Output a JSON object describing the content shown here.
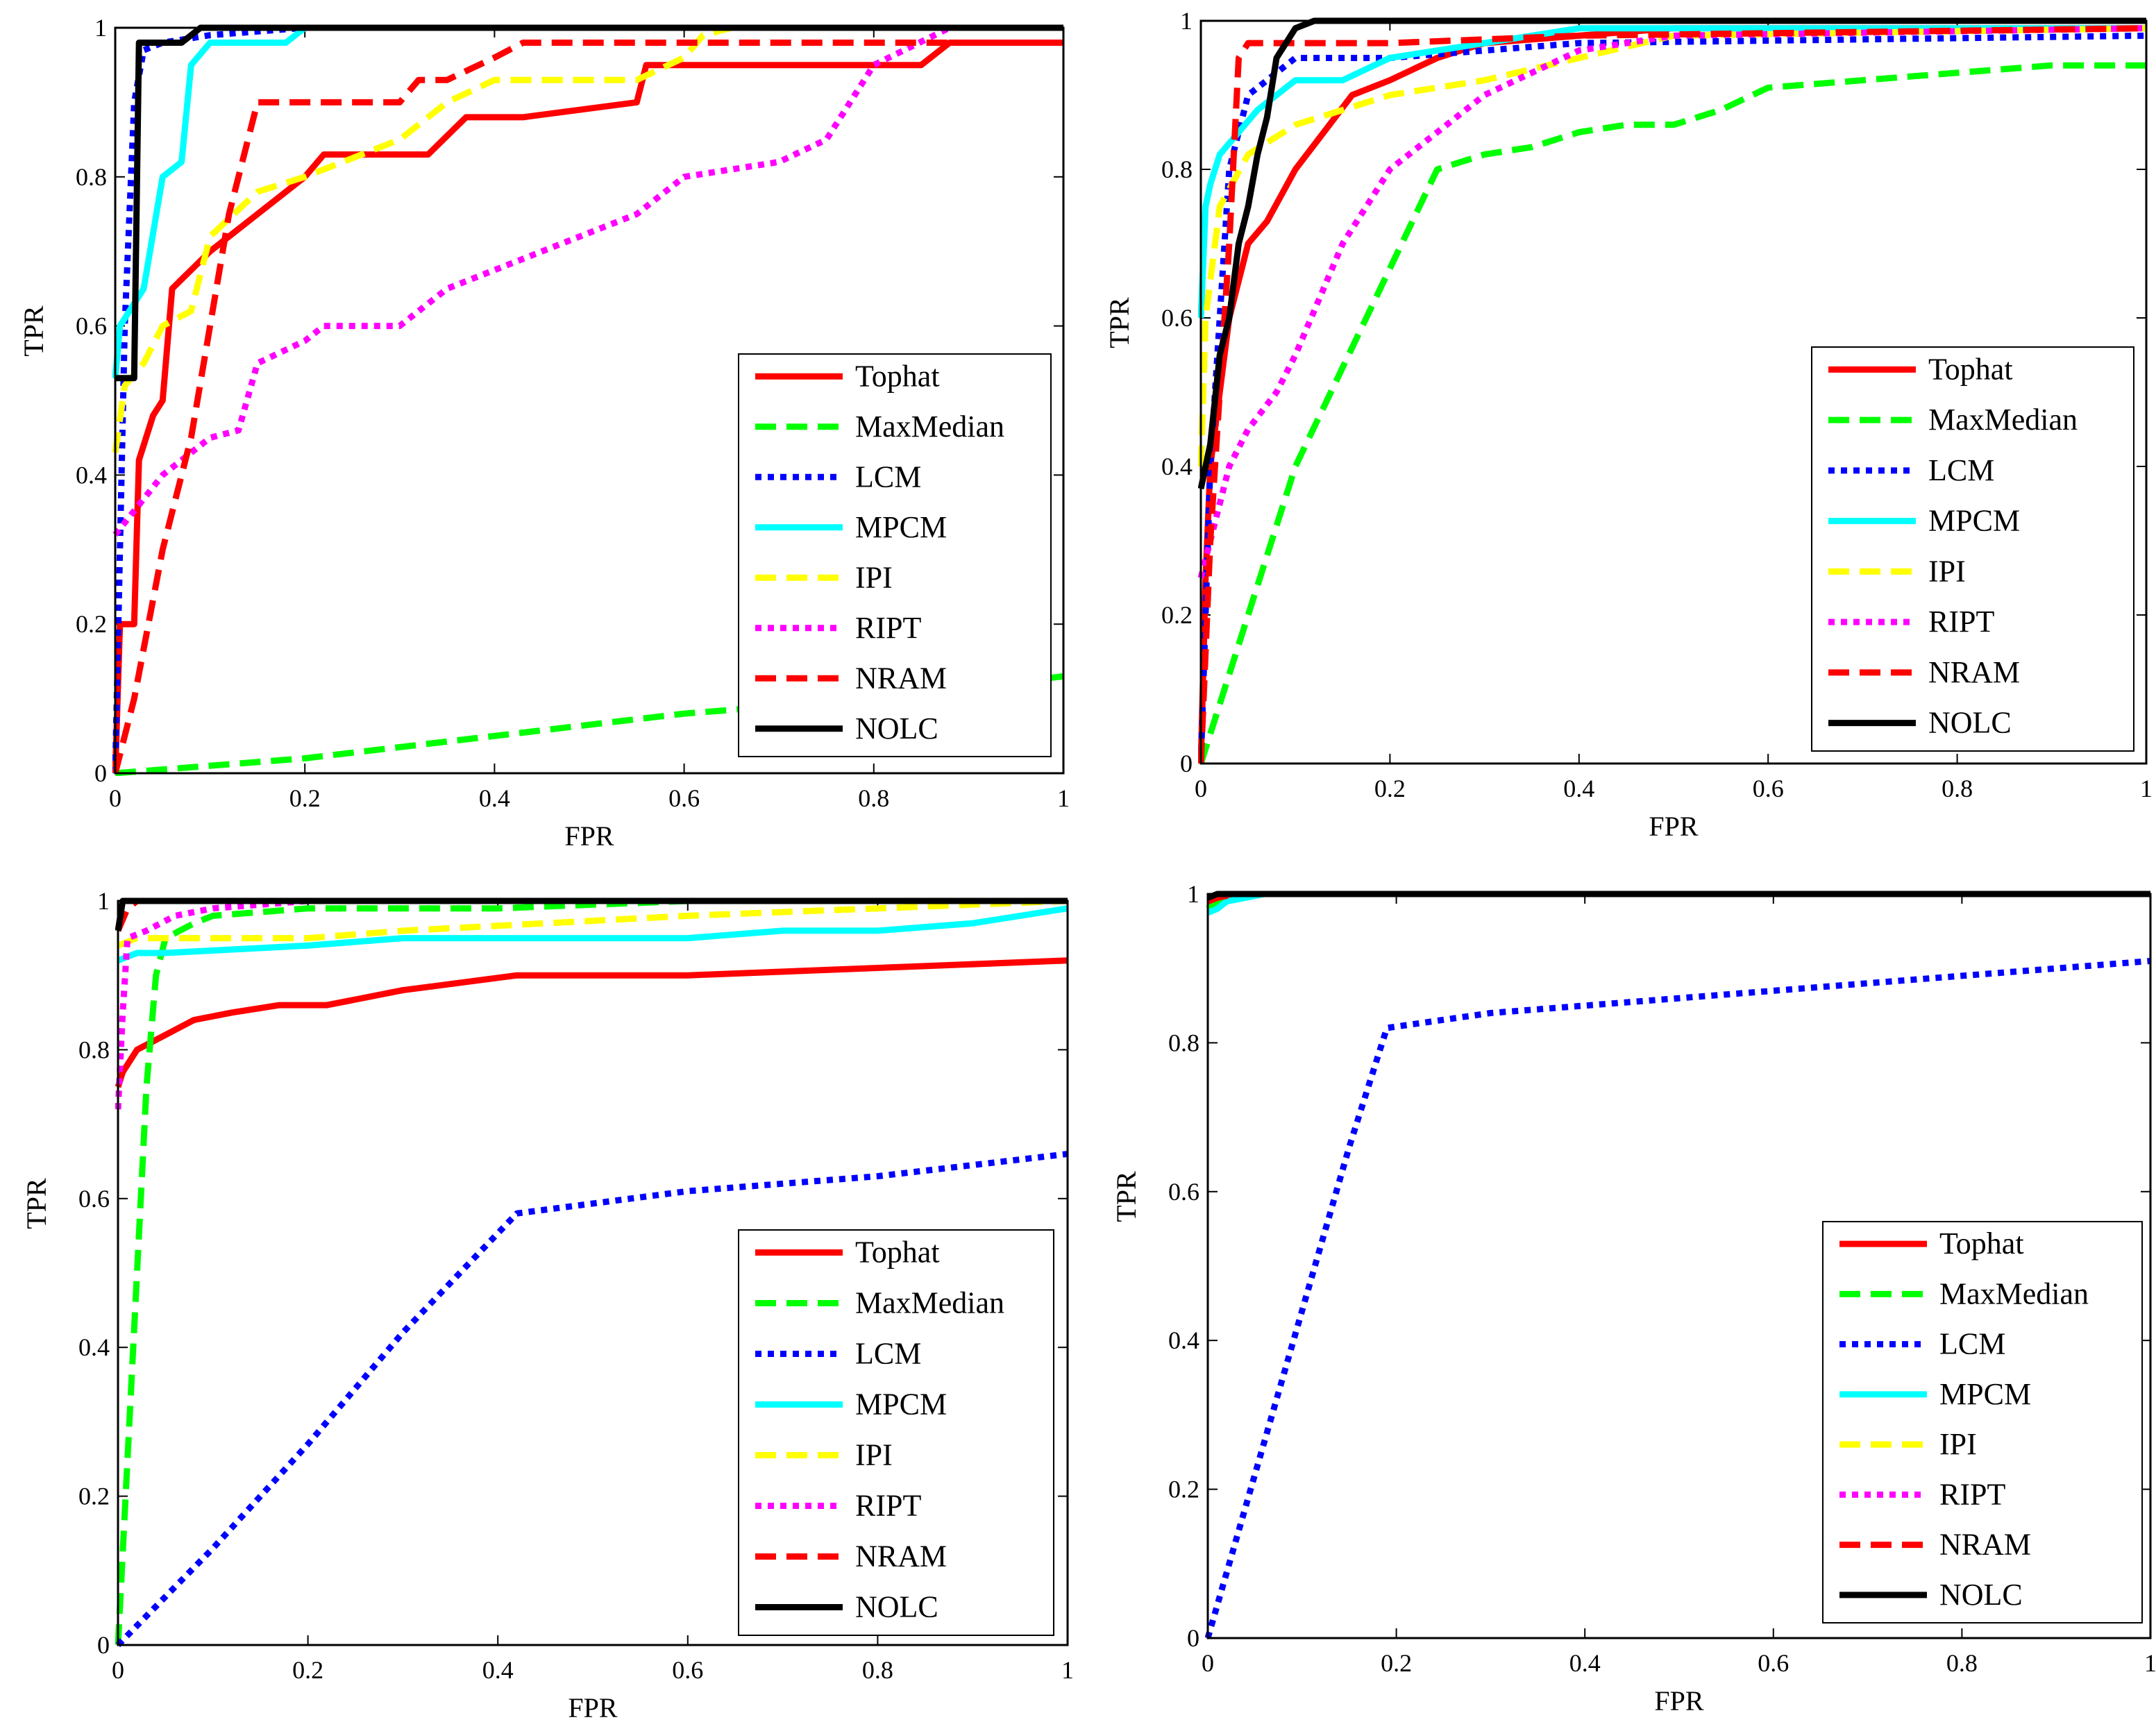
{
  "legend_entries": [
    {
      "name": "Tophat",
      "color": "#ff0000",
      "style": "solid"
    },
    {
      "name": "MaxMedian",
      "color": "#00ff00",
      "style": "dashed"
    },
    {
      "name": "LCM",
      "color": "#0000ff",
      "style": "dotted"
    },
    {
      "name": "MPCM",
      "color": "#00ffff",
      "style": "solid"
    },
    {
      "name": "IPI",
      "color": "#ffff00",
      "style": "dashed"
    },
    {
      "name": "RIPT",
      "color": "#ff00ff",
      "style": "dotted"
    },
    {
      "name": "NRAM",
      "color": "#ff0000",
      "style": "dashed"
    },
    {
      "name": "NOLC",
      "color": "#000000",
      "style": "solid"
    }
  ],
  "chart_data": [
    {
      "type": "line",
      "panel": "top-left",
      "xlabel": "FPR",
      "ylabel": "TPR",
      "xlim": [
        0,
        1
      ],
      "ylim": [
        0,
        1
      ],
      "xticks": [
        "0",
        "0.2",
        "0.4",
        "0.6",
        "0.8",
        "1"
      ],
      "yticks": [
        "0",
        "0.2",
        "0.4",
        "0.6",
        "0.8",
        "1"
      ],
      "legend_position": "bottom-right",
      "series": [
        {
          "name": "Tophat",
          "x": [
            0,
            0.005,
            0.02,
            0.025,
            0.04,
            0.05,
            0.06,
            0.1,
            0.15,
            0.2,
            0.22,
            0.3,
            0.33,
            0.37,
            0.43,
            0.55,
            0.56,
            0.62,
            0.85,
            0.88,
            1
          ],
          "y": [
            0,
            0.2,
            0.2,
            0.42,
            0.48,
            0.5,
            0.65,
            0.7,
            0.75,
            0.8,
            0.83,
            0.83,
            0.83,
            0.88,
            0.88,
            0.9,
            0.95,
            0.95,
            0.95,
            0.98,
            0.98
          ]
        },
        {
          "name": "MaxMedian",
          "x": [
            0,
            0.2,
            0.4,
            0.6,
            0.8,
            1
          ],
          "y": [
            0,
            0.02,
            0.05,
            0.08,
            0.1,
            0.13
          ]
        },
        {
          "name": "LCM",
          "x": [
            0,
            0.005,
            0.01,
            0.02,
            0.03,
            0.05,
            0.1,
            0.2,
            0.4,
            1
          ],
          "y": [
            0,
            0.3,
            0.6,
            0.9,
            0.97,
            0.98,
            0.99,
            1,
            1,
            1
          ]
        },
        {
          "name": "MPCM",
          "x": [
            0,
            0.005,
            0.03,
            0.05,
            0.07,
            0.08,
            0.1,
            0.15,
            0.18,
            0.2,
            1
          ],
          "y": [
            0.53,
            0.6,
            0.65,
            0.8,
            0.82,
            0.95,
            0.98,
            0.98,
            0.98,
            1,
            1
          ]
        },
        {
          "name": "IPI",
          "x": [
            0,
            0.01,
            0.03,
            0.05,
            0.08,
            0.1,
            0.15,
            0.2,
            0.3,
            0.35,
            0.4,
            0.55,
            0.6,
            0.62,
            0.65,
            1
          ],
          "y": [
            0.43,
            0.52,
            0.55,
            0.6,
            0.62,
            0.72,
            0.78,
            0.8,
            0.85,
            0.9,
            0.93,
            0.93,
            0.96,
            0.99,
            1,
            1
          ]
        },
        {
          "name": "RIPT",
          "x": [
            0,
            0.05,
            0.1,
            0.13,
            0.15,
            0.2,
            0.22,
            0.3,
            0.35,
            0.45,
            0.55,
            0.6,
            0.7,
            0.75,
            0.8,
            0.88,
            1
          ],
          "y": [
            0.32,
            0.4,
            0.45,
            0.46,
            0.55,
            0.58,
            0.6,
            0.6,
            0.65,
            0.7,
            0.75,
            0.8,
            0.82,
            0.85,
            0.95,
            1,
            1
          ]
        },
        {
          "name": "NRAM",
          "x": [
            0,
            0.02,
            0.05,
            0.08,
            0.12,
            0.15,
            0.2,
            0.3,
            0.32,
            0.35,
            0.4,
            0.43,
            1
          ],
          "y": [
            0,
            0.1,
            0.3,
            0.45,
            0.75,
            0.9,
            0.9,
            0.9,
            0.93,
            0.93,
            0.96,
            0.98,
            0.98
          ]
        },
        {
          "name": "NOLC",
          "x": [
            0,
            0.02,
            0.025,
            0.05,
            0.07,
            0.09,
            0.1,
            1
          ],
          "y": [
            0.53,
            0.53,
            0.98,
            0.98,
            0.98,
            1,
            1,
            1
          ]
        }
      ]
    },
    {
      "type": "line",
      "panel": "top-right",
      "xlabel": "FPR",
      "ylabel": "TPR",
      "xlim": [
        0,
        1
      ],
      "ylim": [
        0,
        1
      ],
      "xticks": [
        "0",
        "0.2",
        "0.4",
        "0.6",
        "0.8",
        "1"
      ],
      "yticks": [
        "0",
        "0.2",
        "0.4",
        "0.6",
        "0.8",
        "1"
      ],
      "legend_position": "bottom-right",
      "series": [
        {
          "name": "Tophat",
          "x": [
            0,
            0.005,
            0.01,
            0.02,
            0.03,
            0.05,
            0.07,
            0.1,
            0.13,
            0.16,
            0.2,
            0.25,
            0.3,
            0.5,
            1
          ],
          "y": [
            0,
            0.25,
            0.4,
            0.5,
            0.6,
            0.7,
            0.73,
            0.8,
            0.85,
            0.9,
            0.92,
            0.95,
            0.97,
            0.99,
            0.99
          ]
        },
        {
          "name": "MaxMedian",
          "x": [
            0,
            0.1,
            0.25,
            0.3,
            0.35,
            0.4,
            0.45,
            0.5,
            0.55,
            0.6,
            0.7,
            0.8,
            0.9,
            1
          ],
          "y": [
            0,
            0.4,
            0.8,
            0.82,
            0.83,
            0.85,
            0.86,
            0.86,
            0.88,
            0.91,
            0.92,
            0.93,
            0.94,
            0.94
          ]
        },
        {
          "name": "LCM",
          "x": [
            0,
            0.01,
            0.02,
            0.03,
            0.05,
            0.1,
            0.2,
            0.4,
            1
          ],
          "y": [
            0,
            0.4,
            0.6,
            0.8,
            0.9,
            0.95,
            0.95,
            0.97,
            0.98
          ]
        },
        {
          "name": "MPCM",
          "x": [
            0,
            0.005,
            0.01,
            0.02,
            0.04,
            0.06,
            0.08,
            0.1,
            0.15,
            0.2,
            0.3,
            0.4,
            1
          ],
          "y": [
            0.6,
            0.75,
            0.78,
            0.82,
            0.85,
            0.88,
            0.9,
            0.92,
            0.92,
            0.95,
            0.97,
            0.99,
            0.99
          ]
        },
        {
          "name": "IPI",
          "x": [
            0,
            0.005,
            0.01,
            0.02,
            0.05,
            0.1,
            0.15,
            0.2,
            0.3,
            0.4,
            0.5,
            1
          ],
          "y": [
            0.4,
            0.6,
            0.65,
            0.75,
            0.82,
            0.86,
            0.88,
            0.9,
            0.92,
            0.95,
            0.98,
            0.99
          ]
        },
        {
          "name": "RIPT",
          "x": [
            0,
            0.03,
            0.05,
            0.08,
            0.1,
            0.15,
            0.2,
            0.25,
            0.3,
            0.35,
            0.4,
            0.5,
            1
          ],
          "y": [
            0.25,
            0.4,
            0.45,
            0.5,
            0.55,
            0.7,
            0.8,
            0.85,
            0.9,
            0.93,
            0.96,
            0.98,
            0.99
          ]
        },
        {
          "name": "NRAM",
          "x": [
            0,
            0.01,
            0.02,
            0.03,
            0.04,
            0.05,
            0.1,
            0.2,
            0.4,
            1
          ],
          "y": [
            0,
            0.3,
            0.5,
            0.7,
            0.95,
            0.97,
            0.97,
            0.97,
            0.98,
            0.99
          ]
        },
        {
          "name": "NOLC",
          "x": [
            0,
            0.01,
            0.02,
            0.03,
            0.04,
            0.05,
            0.06,
            0.07,
            0.08,
            0.1,
            0.12,
            1
          ],
          "y": [
            0.37,
            0.43,
            0.55,
            0.6,
            0.7,
            0.75,
            0.82,
            0.87,
            0.95,
            0.99,
            1,
            1
          ]
        }
      ]
    },
    {
      "type": "line",
      "panel": "bottom-left",
      "xlabel": "FPR",
      "ylabel": "TPR",
      "xlim": [
        0,
        1
      ],
      "ylim": [
        0,
        1
      ],
      "xticks": [
        "0",
        "0.2",
        "0.4",
        "0.6",
        "0.8",
        "1"
      ],
      "yticks": [
        "0",
        "0.2",
        "0.4",
        "0.6",
        "0.8",
        "1"
      ],
      "legend_position": "bottom-right",
      "series": [
        {
          "name": "Tophat",
          "x": [
            0,
            0.005,
            0.02,
            0.05,
            0.08,
            0.12,
            0.17,
            0.22,
            0.3,
            0.42,
            0.6,
            0.8,
            1
          ],
          "y": [
            0.75,
            0.77,
            0.8,
            0.82,
            0.84,
            0.85,
            0.86,
            0.86,
            0.88,
            0.9,
            0.9,
            0.91,
            0.92
          ]
        },
        {
          "name": "MaxMedian",
          "x": [
            0,
            0.01,
            0.02,
            0.03,
            0.04,
            0.05,
            0.08,
            0.1,
            0.2,
            0.4,
            0.6,
            1
          ],
          "y": [
            0,
            0.25,
            0.5,
            0.75,
            0.9,
            0.95,
            0.97,
            0.98,
            0.99,
            0.99,
            1,
            1
          ]
        },
        {
          "name": "LCM",
          "x": [
            0,
            0.1,
            0.2,
            0.3,
            0.42,
            0.6,
            0.8,
            1
          ],
          "y": [
            0,
            0.13,
            0.27,
            0.42,
            0.58,
            0.61,
            0.63,
            0.66
          ]
        },
        {
          "name": "MPCM",
          "x": [
            0,
            0.02,
            0.05,
            0.2,
            0.3,
            0.5,
            0.6,
            0.7,
            0.8,
            0.9,
            1
          ],
          "y": [
            0.92,
            0.93,
            0.93,
            0.94,
            0.95,
            0.95,
            0.95,
            0.96,
            0.96,
            0.97,
            0.99
          ]
        },
        {
          "name": "IPI",
          "x": [
            0,
            0.02,
            0.1,
            0.2,
            0.3,
            0.45,
            0.6,
            0.8,
            1
          ],
          "y": [
            0.94,
            0.95,
            0.95,
            0.95,
            0.96,
            0.97,
            0.98,
            0.99,
            1
          ]
        },
        {
          "name": "RIPT",
          "x": [
            0,
            0.005,
            0.01,
            0.03,
            0.06,
            0.1,
            0.2,
            1
          ],
          "y": [
            0.72,
            0.85,
            0.95,
            0.96,
            0.98,
            0.99,
            1,
            1
          ]
        },
        {
          "name": "NRAM",
          "x": [
            0,
            0.01,
            0.02,
            1
          ],
          "y": [
            0.96,
            0.99,
            1,
            1
          ]
        },
        {
          "name": "NOLC",
          "x": [
            0,
            0.005,
            1
          ],
          "y": [
            0.96,
            1,
            1
          ]
        }
      ]
    },
    {
      "type": "line",
      "panel": "bottom-right",
      "xlabel": "FPR",
      "ylabel": "TPR",
      "xlim": [
        0,
        1
      ],
      "ylim": [
        0,
        1
      ],
      "xticks": [
        "0",
        "0.2",
        "0.4",
        "0.6",
        "0.8",
        "1"
      ],
      "yticks": [
        "0",
        "0.2",
        "0.4",
        "0.6",
        "0.8",
        "1"
      ],
      "legend_position": "bottom-right",
      "series": [
        {
          "name": "Tophat",
          "x": [
            0,
            0.01,
            0.03,
            0.65
          ],
          "y": [
            0.98,
            0.99,
            1,
            1
          ]
        },
        {
          "name": "MaxMedian",
          "x": [
            0,
            0.01,
            0.03,
            1
          ],
          "y": [
            0.98,
            0.99,
            1,
            1
          ]
        },
        {
          "name": "LCM",
          "x": [
            0,
            0.05,
            0.1,
            0.15,
            0.19,
            0.3,
            0.4,
            0.5,
            0.6,
            0.7,
            0.8,
            0.9,
            1
          ],
          "y": [
            0,
            0.22,
            0.44,
            0.66,
            0.82,
            0.84,
            0.85,
            0.86,
            0.87,
            0.88,
            0.89,
            0.9,
            0.91
          ]
        },
        {
          "name": "MPCM",
          "x": [
            0,
            0.01,
            0.02,
            0.04,
            0.06,
            1
          ],
          "y": [
            0.975,
            0.98,
            0.99,
            0.995,
            1,
            1
          ]
        },
        {
          "name": "IPI",
          "x": [
            0,
            0.02,
            1
          ],
          "y": [
            0.99,
            1,
            1
          ]
        },
        {
          "name": "RIPT",
          "x": [
            0,
            0.02,
            1
          ],
          "y": [
            0.99,
            1,
            1
          ]
        },
        {
          "name": "NRAM",
          "x": [
            0,
            0.01,
            0.03,
            0.65
          ],
          "y": [
            0.99,
            0.995,
            1,
            1
          ]
        },
        {
          "name": "NOLC",
          "x": [
            0,
            0.01,
            1
          ],
          "y": [
            0.995,
            1,
            1
          ]
        }
      ]
    }
  ]
}
